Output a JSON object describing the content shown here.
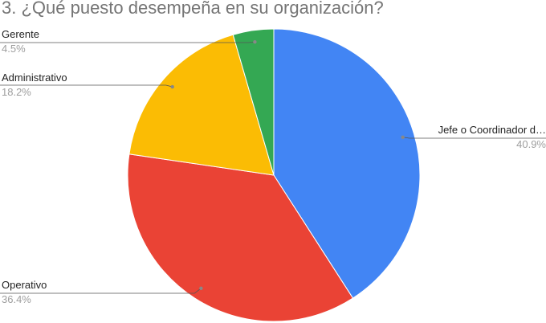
{
  "title": "3. ¿Qué puesto desempeña en su organización?",
  "chart_data": {
    "type": "pie",
    "title": "3. ¿Qué puesto desempeña en su organización?",
    "slices": [
      {
        "label": "Jefe o Coordinador d…",
        "value": 40.9,
        "pct_label": "40.9%",
        "color": "#4285f4"
      },
      {
        "label": "Operativo",
        "value": 36.4,
        "pct_label": "36.4%",
        "color": "#ea4335"
      },
      {
        "label": "Administrativo",
        "value": 18.2,
        "pct_label": "18.2%",
        "color": "#fbbc04"
      },
      {
        "label": "Gerente",
        "value": 4.5,
        "pct_label": "4.5%",
        "color": "#34a853"
      }
    ],
    "start_angle": "12 o'clock",
    "direction": "clockwise",
    "legend": "none",
    "label_placement": "outside with leader lines"
  }
}
